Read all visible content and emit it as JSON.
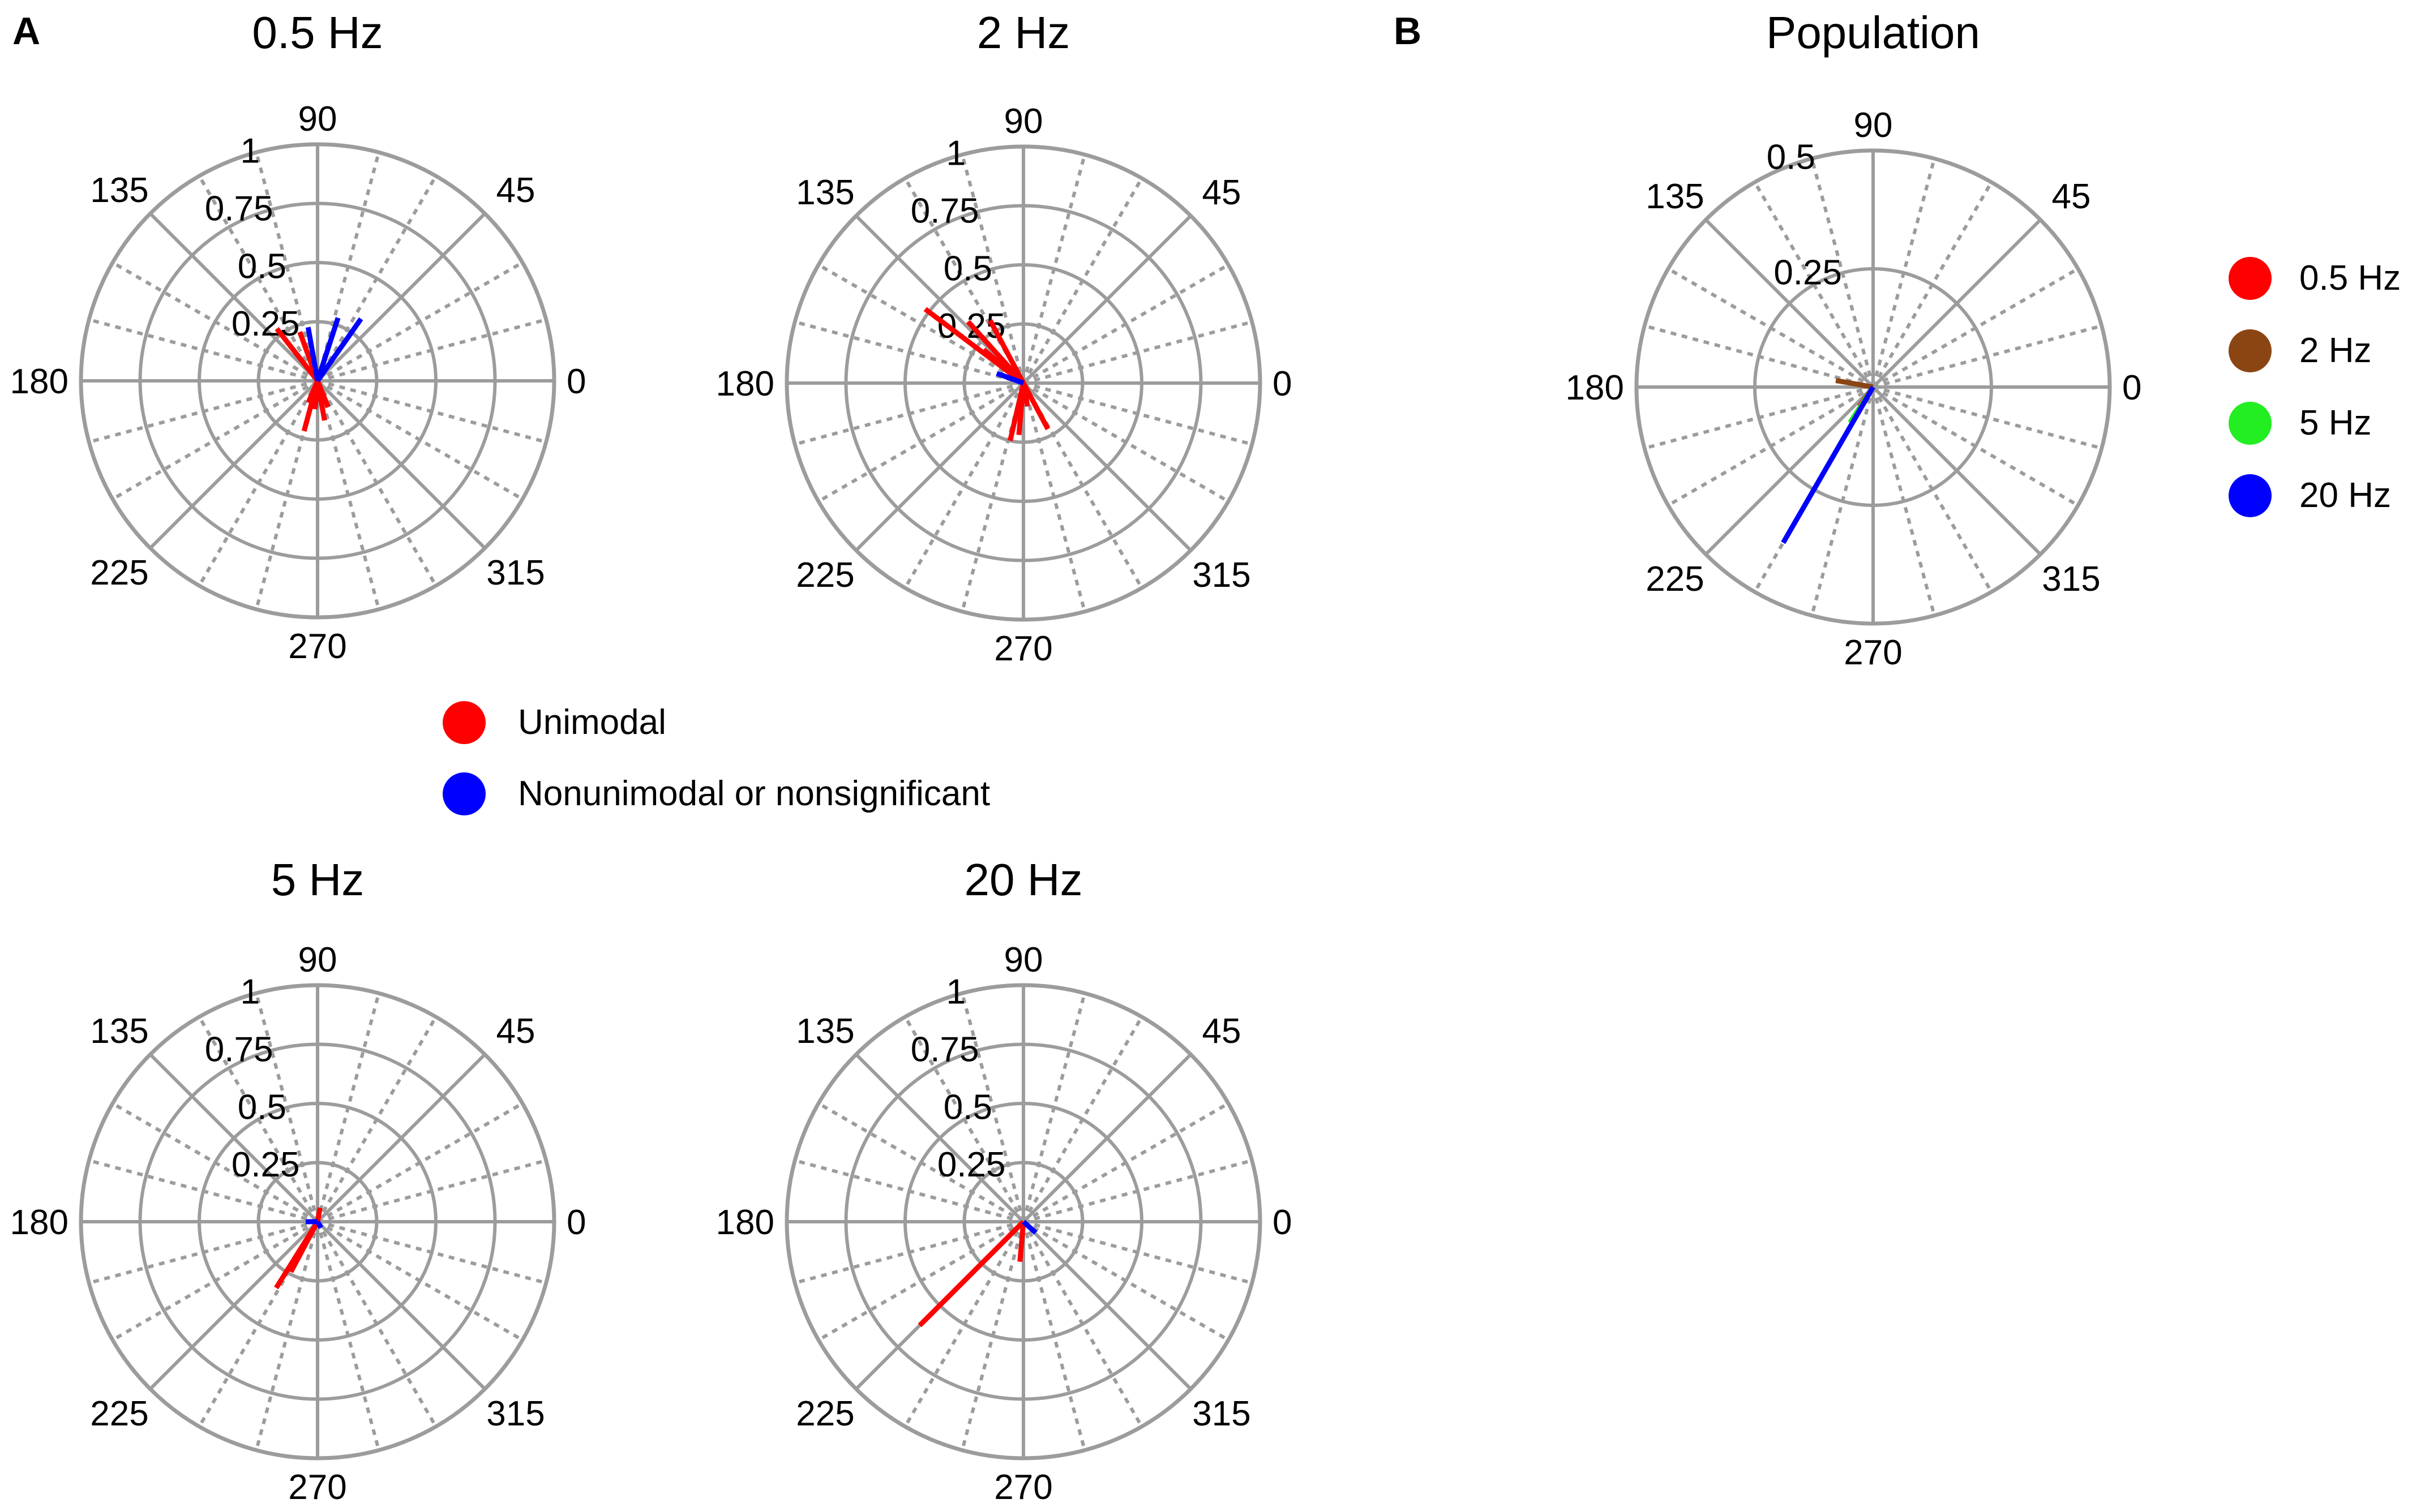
{
  "panel_labels": {
    "a": "A",
    "b": "B"
  },
  "colors": {
    "grid": "#9c9c9c",
    "unimodal": "#ff0000",
    "nonunimodal": "#0000ff",
    "hz_0_5": "#ff0000",
    "hz_2": "#8b4513",
    "hz_5": "#22ee22",
    "hz_20": "#0000ff"
  },
  "legend_a": [
    {
      "label": "Unimodal",
      "color": "#ff0000"
    },
    {
      "label": "Nonunimodal or nonsignificant",
      "color": "#0000ff"
    }
  ],
  "legend_b": [
    {
      "label": "0.5 Hz",
      "color": "#ff0000"
    },
    {
      "label": "2 Hz",
      "color": "#8b4513"
    },
    {
      "label": "5 Hz",
      "color": "#22ee22"
    },
    {
      "label": "20 Hz",
      "color": "#0000ff"
    }
  ],
  "chart_data": [
    {
      "type": "polar",
      "title": "0.5 Hz",
      "angle_ticks": [
        "0",
        "45",
        "90",
        "135",
        "180",
        "225",
        "270",
        "315"
      ],
      "radial_ticks": [
        0.25,
        0.5,
        0.75,
        1
      ],
      "radial_tick_labels": [
        "0.25",
        "0.5",
        "0.75",
        "1"
      ],
      "rmax": 1,
      "vectors": [
        {
          "angle": 128,
          "r": 0.28,
          "group": "Unimodal"
        },
        {
          "angle": 110,
          "r": 0.22,
          "group": "Unimodal"
        },
        {
          "angle": 255,
          "r": 0.22,
          "group": "Unimodal"
        },
        {
          "angle": 280,
          "r": 0.17,
          "group": "Unimodal"
        },
        {
          "angle": 292,
          "r": 0.12,
          "group": "Unimodal"
        },
        {
          "angle": 265,
          "r": 0.12,
          "group": "Unimodal"
        },
        {
          "angle": 247,
          "r": 0.1,
          "group": "Unimodal"
        },
        {
          "angle": 100,
          "r": 0.23,
          "group": "Nonunimodal or nonsignificant"
        },
        {
          "angle": 72,
          "r": 0.28,
          "group": "Nonunimodal or nonsignificant"
        },
        {
          "angle": 55,
          "r": 0.32,
          "group": "Nonunimodal or nonsignificant"
        }
      ]
    },
    {
      "type": "polar",
      "title": "2 Hz",
      "angle_ticks": [
        "0",
        "45",
        "90",
        "135",
        "180",
        "225",
        "270",
        "315"
      ],
      "radial_ticks": [
        0.25,
        0.5,
        0.75,
        1
      ],
      "radial_tick_labels": [
        "0.25",
        "0.5",
        "0.75",
        "1"
      ],
      "rmax": 1,
      "vectors": [
        {
          "angle": 143,
          "r": 0.52,
          "group": "Unimodal"
        },
        {
          "angle": 132,
          "r": 0.35,
          "group": "Unimodal"
        },
        {
          "angle": 118,
          "r": 0.3,
          "group": "Unimodal"
        },
        {
          "angle": 140,
          "r": 0.22,
          "group": "Unimodal"
        },
        {
          "angle": 257,
          "r": 0.25,
          "group": "Unimodal"
        },
        {
          "angle": 265,
          "r": 0.22,
          "group": "Unimodal"
        },
        {
          "angle": 298,
          "r": 0.22,
          "group": "Unimodal"
        },
        {
          "angle": 280,
          "r": 0.1,
          "group": "Unimodal"
        },
        {
          "angle": 160,
          "r": 0.12,
          "group": "Nonunimodal or nonsignificant"
        }
      ]
    },
    {
      "type": "polar",
      "title": "5 Hz",
      "angle_ticks": [
        "0",
        "45",
        "90",
        "135",
        "180",
        "225",
        "270",
        "315"
      ],
      "radial_ticks": [
        0.25,
        0.5,
        0.75,
        1
      ],
      "radial_tick_labels": [
        "0.25",
        "0.5",
        "0.75",
        "1"
      ],
      "rmax": 1,
      "vectors": [
        {
          "angle": 238,
          "r": 0.33,
          "group": "Unimodal"
        },
        {
          "angle": 242,
          "r": 0.24,
          "group": "Unimodal"
        },
        {
          "angle": 80,
          "r": 0.06,
          "group": "Unimodal"
        },
        {
          "angle": 180,
          "r": 0.05,
          "group": "Nonunimodal or nonsignificant"
        },
        {
          "angle": 300,
          "r": 0.03,
          "group": "Nonunimodal or nonsignificant"
        }
      ]
    },
    {
      "type": "polar",
      "title": "20 Hz",
      "angle_ticks": [
        "0",
        "45",
        "90",
        "135",
        "180",
        "225",
        "270",
        "315"
      ],
      "radial_ticks": [
        0.25,
        0.5,
        0.75,
        1
      ],
      "radial_tick_labels": [
        "0.25",
        "0.5",
        "0.75",
        "1"
      ],
      "rmax": 1,
      "vectors": [
        {
          "angle": 225,
          "r": 0.62,
          "group": "Unimodal"
        },
        {
          "angle": 265,
          "r": 0.17,
          "group": "Unimodal"
        },
        {
          "angle": 318,
          "r": 0.07,
          "group": "Nonunimodal or nonsignificant"
        }
      ]
    },
    {
      "type": "polar",
      "title": "Population",
      "angle_ticks": [
        "0",
        "45",
        "90",
        "135",
        "180",
        "225",
        "270",
        "315"
      ],
      "radial_ticks": [
        0.25,
        0.5
      ],
      "radial_tick_labels": [
        "0.25",
        "0.5"
      ],
      "rmax": 0.5,
      "vectors": [
        {
          "angle": 170,
          "r": 0.08,
          "group": "2 Hz"
        },
        {
          "angle": 235,
          "r": 0.05,
          "group": "0.5 Hz"
        },
        {
          "angle": 237,
          "r": 0.09,
          "group": "5 Hz"
        },
        {
          "angle": 240,
          "r": 0.38,
          "group": "20 Hz"
        }
      ]
    }
  ]
}
